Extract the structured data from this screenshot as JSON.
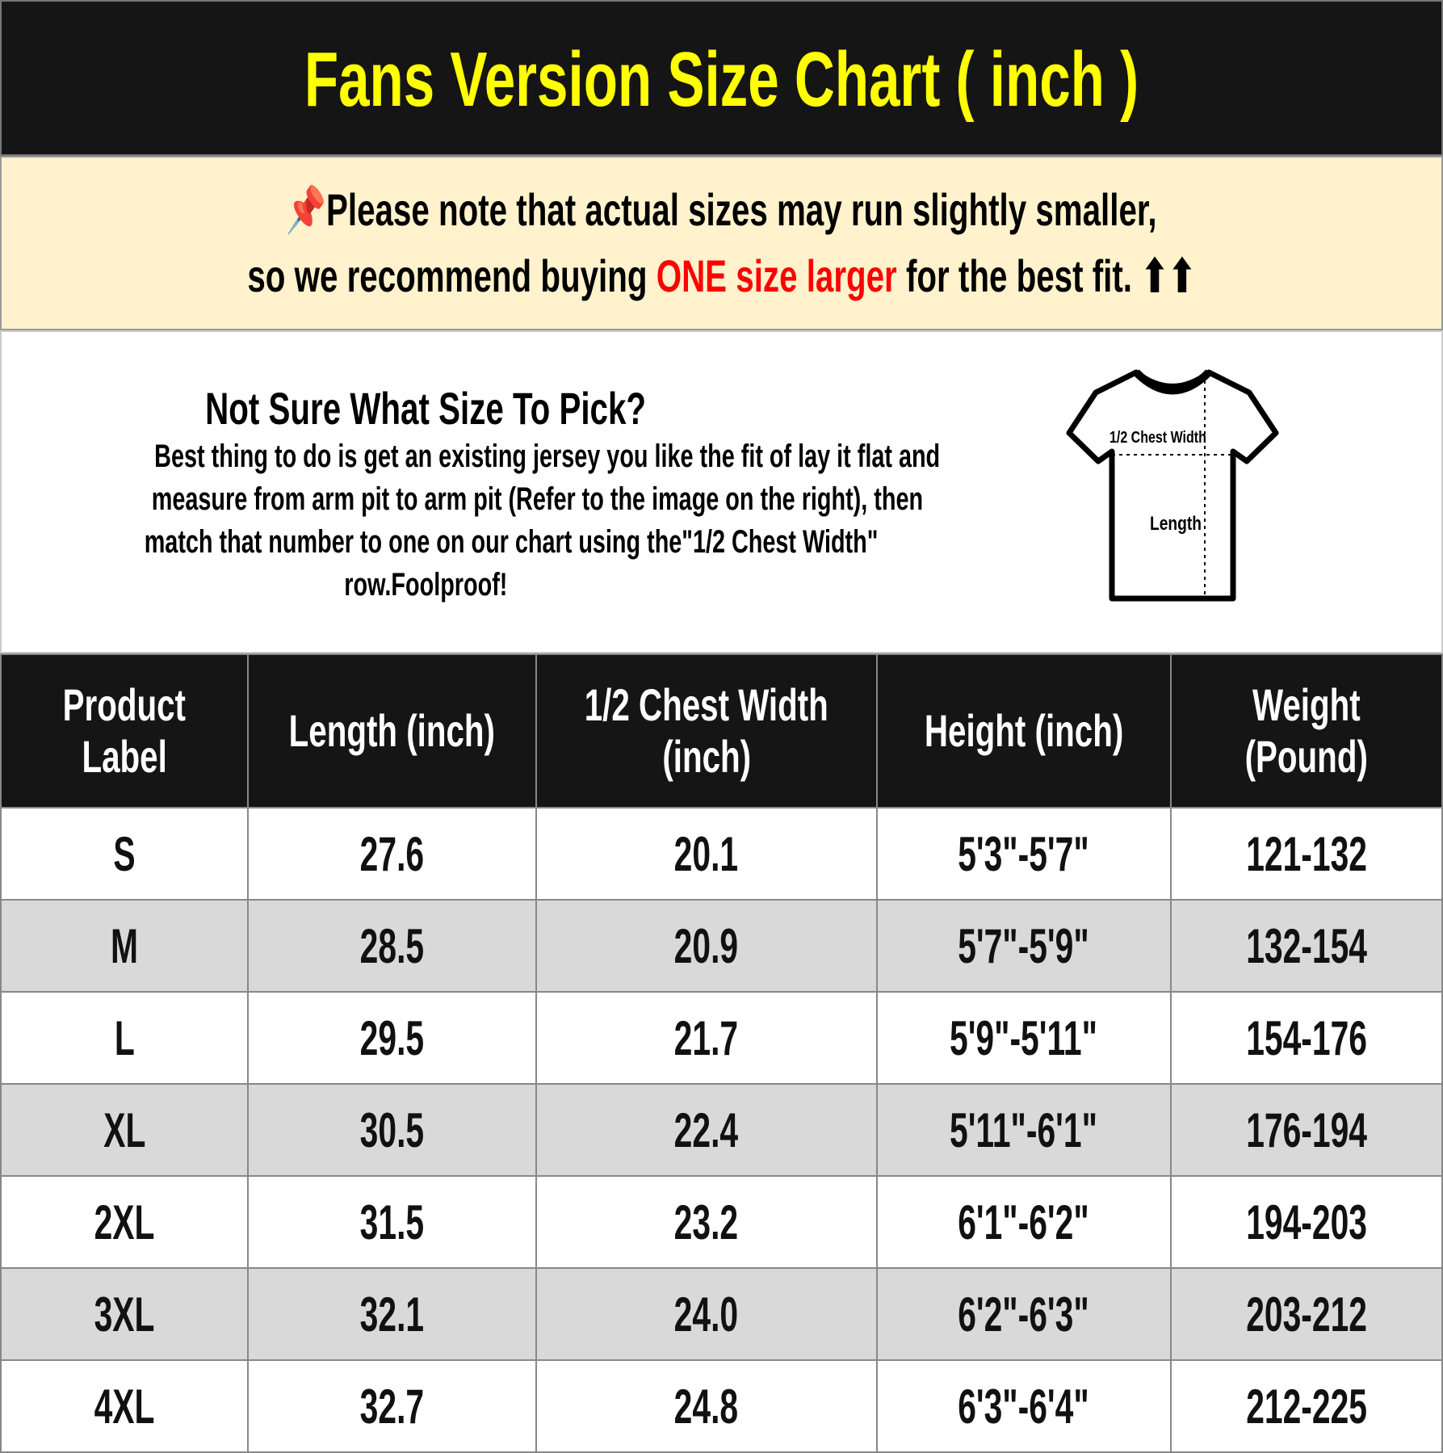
{
  "title": "Fans Version Size Chart ( inch )",
  "note": {
    "icon": "pushpin-icon",
    "line1": "Please note that actual sizes may run slightly smaller,",
    "line2_pre": "so we recommend buying ",
    "line2_highlight": "ONE size larger",
    "line2_post": " for the best fit.",
    "arrows": "⬆⬆",
    "highlight_color": "#ff0000"
  },
  "info": {
    "heading": "Not Sure What Size To Pick?",
    "body": [
      "Best thing to do is get an existing jersey you like the fit of lay it flat and",
      "measure from arm pit to arm pit (Refer to the image on the right), then",
      "match that number to one on our chart using the\"1/2 Chest Width\"",
      "row.Foolproof!"
    ],
    "diagram": {
      "chest_label": "1/2 Chest Width",
      "length_label": "Length"
    }
  },
  "table": {
    "headers": [
      [
        "Product",
        "Label"
      ],
      [
        "Length (inch)"
      ],
      [
        "1/2 Chest Width",
        "(inch)"
      ],
      [
        "Height (inch)"
      ],
      [
        "Weight",
        "(Pound)"
      ]
    ],
    "rows": [
      [
        "S",
        "27.6",
        "20.1",
        "5'3\"-5'7\"",
        "121-132"
      ],
      [
        "M",
        "28.5",
        "20.9",
        "5'7\"-5'9\"",
        "132-154"
      ],
      [
        "L",
        "29.5",
        "21.7",
        "5'9\"-5'11\"",
        "154-176"
      ],
      [
        "XL",
        "30.5",
        "22.4",
        "5'11\"-6'1\"",
        "176-194"
      ],
      [
        "2XL",
        "31.5",
        "23.2",
        "6'1\"-6'2\"",
        "194-203"
      ],
      [
        "3XL",
        "32.1",
        "24.0",
        "6'2\"-6'3\"",
        "203-212"
      ],
      [
        "4XL",
        "32.7",
        "24.8",
        "6'3\"-6'4\"",
        "212-225"
      ]
    ]
  }
}
